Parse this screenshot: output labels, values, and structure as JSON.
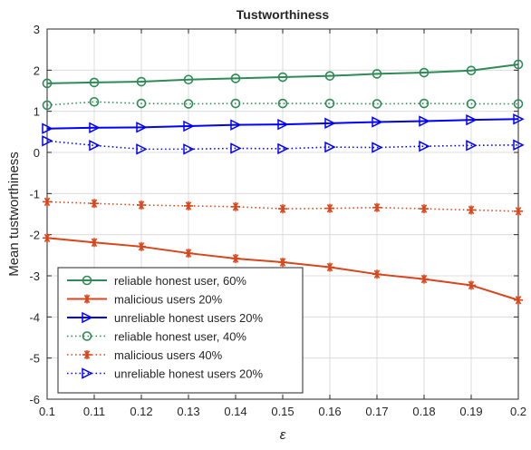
{
  "chart_data": {
    "type": "line",
    "title": "Tustworthiness",
    "xlabel": "ε",
    "ylabel": "Mean tustworthiness",
    "xlim": [
      0.1,
      0.2
    ],
    "ylim": [
      -6,
      3
    ],
    "x_ticks": [
      "0.1",
      "0.11",
      "0.12",
      "0.13",
      "0.14",
      "0.15",
      "0.16",
      "0.17",
      "0.18",
      "0.19",
      "0.2"
    ],
    "y_ticks": [
      "3",
      "2",
      "1",
      "0",
      "-1",
      "-2",
      "-3",
      "-4",
      "-5",
      "-6"
    ],
    "grid": true,
    "legend_position": "bottom-left",
    "x": [
      0.1,
      0.11,
      0.12,
      0.13,
      0.14,
      0.15,
      0.16,
      0.17,
      0.18,
      0.19,
      0.2
    ],
    "series": [
      {
        "name": "reliable honest user, 60%",
        "color": "#2e8b57",
        "linestyle": "solid",
        "marker": "circle",
        "values": [
          1.68,
          1.7,
          1.72,
          1.77,
          1.8,
          1.83,
          1.86,
          1.91,
          1.94,
          1.99,
          2.14
        ]
      },
      {
        "name": "malicious users 20%",
        "color": "#d9451a",
        "linestyle": "solid",
        "marker": "asterisk",
        "values": [
          -2.08,
          -2.19,
          -2.29,
          -2.45,
          -2.58,
          -2.67,
          -2.79,
          -2.96,
          -3.08,
          -3.23,
          -3.59
        ]
      },
      {
        "name": "unreliable honest users 20%",
        "color": "#0000ff",
        "linestyle": "solid",
        "marker": "triangle-right",
        "values": [
          0.58,
          0.6,
          0.61,
          0.64,
          0.67,
          0.68,
          0.71,
          0.74,
          0.76,
          0.79,
          0.81
        ]
      },
      {
        "name": "reliable honest user, 40%",
        "color": "#2e8b57",
        "linestyle": "dotted",
        "marker": "circle",
        "values": [
          1.15,
          1.23,
          1.19,
          1.18,
          1.19,
          1.19,
          1.19,
          1.18,
          1.19,
          1.18,
          1.18
        ]
      },
      {
        "name": "malicious users 40%",
        "color": "#d9451a",
        "linestyle": "dotted",
        "marker": "asterisk",
        "values": [
          -1.2,
          -1.24,
          -1.28,
          -1.3,
          -1.32,
          -1.37,
          -1.36,
          -1.34,
          -1.37,
          -1.4,
          -1.43
        ]
      },
      {
        "name": "unreliable honest users 20%",
        "color": "#0000ff",
        "linestyle": "dotted",
        "marker": "triangle-right",
        "values": [
          0.28,
          0.17,
          0.08,
          0.08,
          0.1,
          0.09,
          0.13,
          0.12,
          0.15,
          0.17,
          0.18
        ]
      }
    ]
  }
}
